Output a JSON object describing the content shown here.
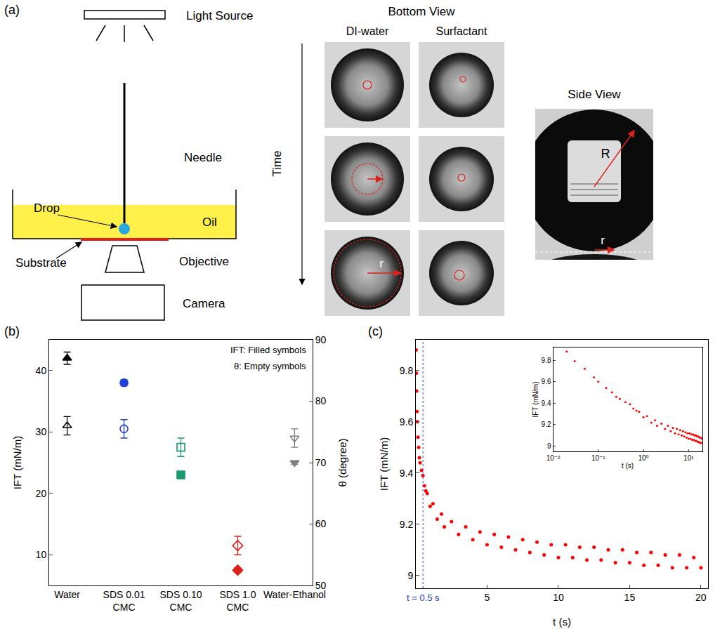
{
  "panel_labels": [
    "(a)",
    "(b)",
    "(c)"
  ],
  "figure_a": {
    "setup": {
      "light_source": "Light Source",
      "needle": "Needle",
      "drop": "Drop",
      "oil": "Oil",
      "substrate": "Substrate",
      "objective": "Objective",
      "camera": "Camera"
    },
    "bottom_view": {
      "title": "Bottom View",
      "columns": [
        "DI-water",
        "Surfactant"
      ],
      "time": "Time",
      "radius": "r"
    },
    "side_view": {
      "title": "Side View",
      "big_radius": "R",
      "radius": "r"
    }
  },
  "chart_data": [
    {
      "type": "scatter",
      "categories": [
        "Water",
        "SDS 0.01 CMC",
        "SDS 0.10 CMC",
        "SDS 1.0 CMC",
        "Water-Ethanol"
      ],
      "y_label": "IFT (mN/m)",
      "y2_label": "θ (degree)",
      "ylim": [
        5,
        45
      ],
      "yticks": [
        10,
        20,
        30,
        40
      ],
      "y2lim": [
        50,
        90
      ],
      "y2ticks": [
        50,
        60,
        70,
        80,
        90
      ],
      "grid": false,
      "annotations": [
        "IFT: Filled symbols",
        "θ: Empty symbols"
      ],
      "series": [
        {
          "color": "#000000",
          "marker": "triangle-up",
          "values": [
            42,
            null,
            null,
            null,
            null
          ],
          "errors": [
            1,
            null,
            null,
            null,
            null
          ]
        },
        {
          "color": "#000000",
          "marker": "triangle-up-open",
          "axis": "y2",
          "values": [
            76,
            null,
            null,
            null,
            null
          ],
          "errors": [
            1.5,
            null,
            null,
            null,
            null
          ]
        },
        {
          "color": "#1f3fd6",
          "marker": "circle",
          "values": [
            null,
            38,
            null,
            null,
            null
          ],
          "errors": [
            null,
            0.5,
            null,
            null,
            null
          ]
        },
        {
          "color": "#1f3fd6",
          "marker": "circle-open",
          "axis": "y2",
          "values": [
            null,
            75.5,
            null,
            null,
            null
          ],
          "errors": [
            null,
            1.5,
            null,
            null,
            null
          ]
        },
        {
          "color": "#1a9a6c",
          "marker": "square",
          "values": [
            null,
            null,
            23,
            null,
            null
          ],
          "errors": [
            null,
            null,
            0.3,
            null,
            null
          ]
        },
        {
          "color": "#1a9a6c",
          "marker": "square-open",
          "axis": "y2",
          "values": [
            null,
            null,
            72.5,
            null,
            null
          ],
          "errors": [
            null,
            null,
            1.5,
            null,
            null
          ]
        },
        {
          "color": "#e0201b",
          "marker": "diamond",
          "values": [
            null,
            null,
            null,
            7.5,
            null
          ],
          "errors": [
            null,
            null,
            null,
            0.4,
            null
          ]
        },
        {
          "color": "#e0201b",
          "marker": "diamond-open",
          "axis": "y2",
          "values": [
            null,
            null,
            null,
            56.5,
            null
          ],
          "errors": [
            null,
            null,
            null,
            1.5,
            null
          ]
        },
        {
          "color": "#808080",
          "marker": "triangle-down",
          "values": [
            null,
            null,
            null,
            null,
            25
          ],
          "errors": [
            null,
            null,
            null,
            null,
            0.3
          ]
        },
        {
          "color": "#808080",
          "marker": "triangle-down-open",
          "axis": "y2",
          "values": [
            null,
            null,
            null,
            null,
            74
          ],
          "errors": [
            null,
            null,
            null,
            null,
            1.5
          ]
        }
      ]
    },
    {
      "type": "scatter",
      "x_label": "t (s)",
      "y_label": "IFT (mN/m)",
      "xlim": [
        0,
        20.5
      ],
      "xticks": [
        5,
        10,
        15,
        20
      ],
      "ylim": [
        8.95,
        9.92
      ],
      "yticks": [
        9,
        9.2,
        9.4,
        9.6,
        9.8
      ],
      "grid": false,
      "color": "#ff0000",
      "marker": "circle",
      "annotations": [
        {
          "x": 0.5,
          "text": "t = 0.5 s"
        }
      ],
      "x": [
        0.02,
        0.03,
        0.05,
        0.08,
        0.1,
        0.15,
        0.2,
        0.25,
        0.3,
        0.4,
        0.5,
        0.6,
        0.7,
        0.8,
        1.0,
        1.2,
        1.5,
        1.8,
        2.0,
        2.5,
        3,
        3.5,
        4,
        4.5,
        5,
        5.5,
        6,
        6.5,
        7,
        7.5,
        8,
        8.5,
        9,
        9.5,
        10,
        10.5,
        11,
        11.5,
        12,
        12.5,
        13,
        13.5,
        14,
        14.5,
        15,
        15.5,
        16,
        16.5,
        17,
        17.5,
        18,
        18.5,
        19,
        19.5,
        20
      ],
      "values": [
        9.88,
        9.79,
        9.72,
        9.64,
        9.6,
        9.54,
        9.5,
        9.46,
        9.44,
        9.41,
        9.39,
        9.35,
        9.33,
        9.32,
        9.27,
        9.28,
        9.22,
        9.24,
        9.19,
        9.21,
        9.16,
        9.19,
        9.14,
        9.17,
        9.12,
        9.16,
        9.11,
        9.15,
        9.1,
        9.14,
        9.09,
        9.13,
        9.08,
        9.12,
        9.07,
        9.12,
        9.07,
        9.11,
        9.06,
        9.11,
        9.06,
        9.1,
        9.05,
        9.1,
        9.05,
        9.09,
        9.04,
        9.09,
        9.04,
        9.08,
        9.03,
        9.08,
        9.03,
        9.07,
        9.03
      ]
    },
    {
      "type": "scatter",
      "log": "x",
      "x_label": "t (s)",
      "y_label": "IFT (mN/m)",
      "xlim": [
        0.01,
        20
      ],
      "xticks": [
        {
          "value": 0.01,
          "label": "10⁻²"
        },
        {
          "value": 0.1,
          "label": "10⁻¹"
        },
        {
          "value": 1,
          "label": "10⁰"
        },
        {
          "value": 10,
          "label": "10¹"
        }
      ],
      "ylim": [
        8.95,
        9.92
      ],
      "yticks": [
        9,
        9.2,
        9.4,
        9.6,
        9.8
      ],
      "grid": false,
      "color": "#ff0000",
      "marker": "circle",
      "x": [
        0.02,
        0.03,
        0.05,
        0.08,
        0.1,
        0.15,
        0.2,
        0.25,
        0.3,
        0.4,
        0.5,
        0.6,
        0.7,
        0.8,
        1.0,
        1.2,
        1.5,
        1.8,
        2.0,
        2.5,
        3,
        3.5,
        4,
        4.5,
        5,
        5.5,
        6,
        6.5,
        7,
        7.5,
        8,
        8.5,
        9,
        9.5,
        10,
        10.5,
        11,
        11.5,
        12,
        12.5,
        13,
        13.5,
        14,
        14.5,
        15,
        15.5,
        16,
        16.5,
        17,
        17.5,
        18,
        18.5,
        19,
        19.5,
        20
      ],
      "values": [
        9.88,
        9.79,
        9.72,
        9.64,
        9.6,
        9.54,
        9.5,
        9.46,
        9.44,
        9.41,
        9.39,
        9.35,
        9.33,
        9.32,
        9.27,
        9.28,
        9.22,
        9.24,
        9.19,
        9.21,
        9.16,
        9.19,
        9.14,
        9.17,
        9.12,
        9.16,
        9.11,
        9.15,
        9.1,
        9.14,
        9.09,
        9.13,
        9.08,
        9.12,
        9.07,
        9.12,
        9.07,
        9.11,
        9.06,
        9.11,
        9.06,
        9.1,
        9.05,
        9.1,
        9.05,
        9.09,
        9.04,
        9.09,
        9.04,
        9.08,
        9.03,
        9.08,
        9.03,
        9.07,
        9.03
      ]
    }
  ]
}
